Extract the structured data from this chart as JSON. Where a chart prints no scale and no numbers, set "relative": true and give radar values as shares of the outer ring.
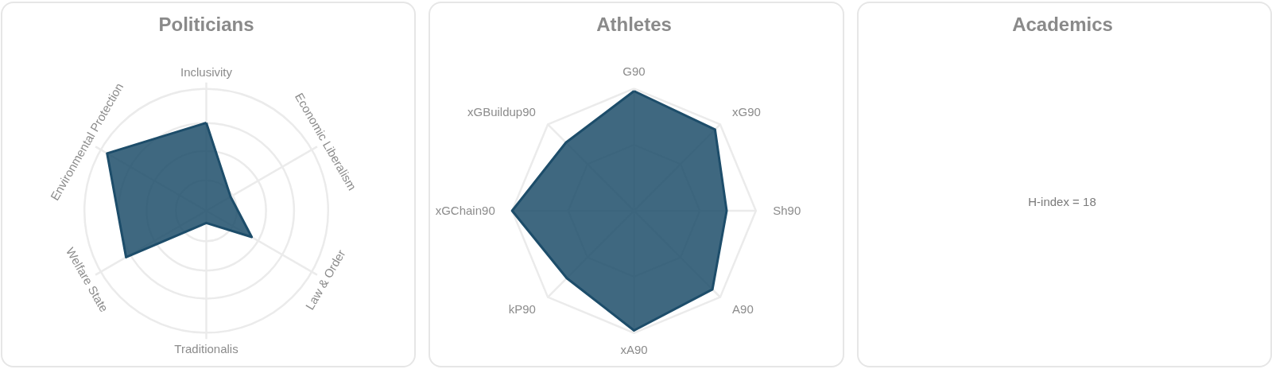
{
  "chart_data": [
    {
      "type": "radar",
      "title": "Politicians",
      "categories": [
        "Inclusivity",
        "Economic Liberalism",
        "Law & Order",
        "Traditionalis",
        "Welfare State",
        "Environmental Protection"
      ],
      "relative": true,
      "grid": true,
      "series": [
        {
          "color": "#1d4d6a",
          "values": [
            0.72,
            0.23,
            0.43,
            0.1,
            0.76,
            0.94
          ]
        }
      ]
    },
    {
      "type": "radar",
      "title": "Athletes",
      "categories": [
        "G90",
        "xG90",
        "Sh90",
        "A90",
        "xA90",
        "kP90",
        "xGChain90",
        "xGBuildup90"
      ],
      "relative": true,
      "grid": true,
      "series": [
        {
          "color": "#1d4d6a",
          "values": [
            0.98,
            0.94,
            0.76,
            0.91,
            0.98,
            0.78,
            1,
            0.79
          ]
        }
      ]
    },
    {
      "type": "other",
      "title": "Academics",
      "annotations": [
        "H-index = 18"
      ]
    }
  ]
}
